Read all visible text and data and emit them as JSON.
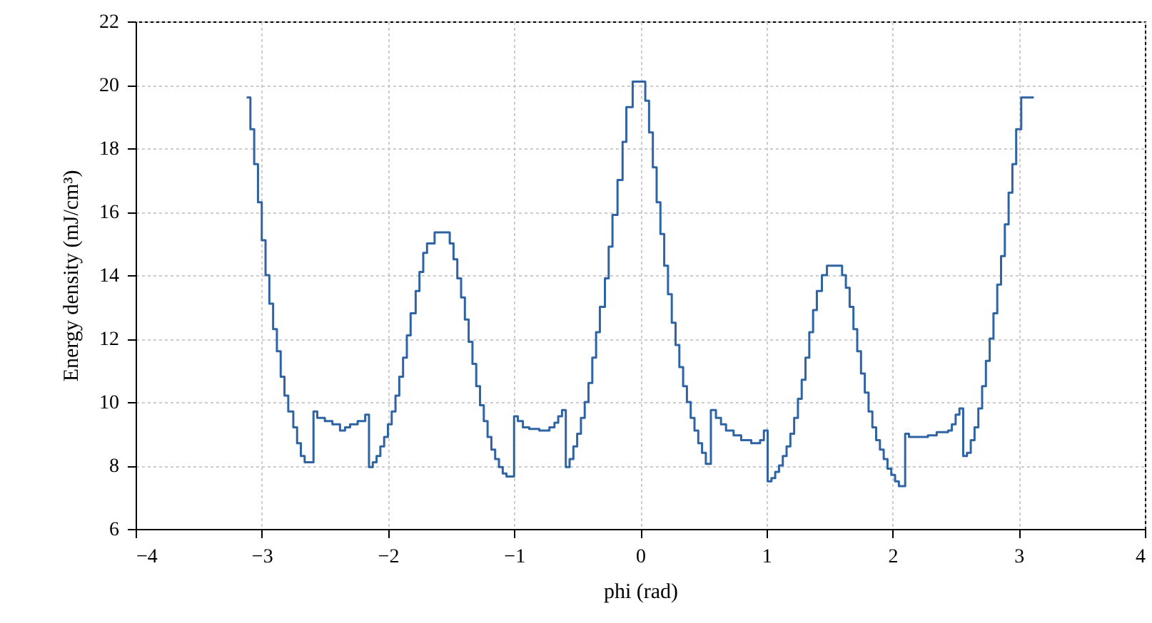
{
  "chart_data": {
    "type": "step",
    "xlabel": "phi (rad)",
    "ylabel": "Energy density (mJ/cm³)",
    "xlim": [
      -4,
      4
    ],
    "xticks": [
      -4,
      -3,
      -2,
      -1,
      0,
      1,
      2,
      3,
      4
    ],
    "ylim": [
      6,
      22
    ],
    "yticks": [
      6,
      8,
      10,
      12,
      14,
      16,
      18,
      20,
      22
    ],
    "grid": true,
    "line_style": "solid",
    "marker": "none",
    "series": [
      {
        "color": "#2e64a4",
        "x": [
          -3.12,
          -3.09,
          -3.06,
          -3.03,
          -3.0,
          -2.97,
          -2.94,
          -2.91,
          -2.88,
          -2.85,
          -2.82,
          -2.79,
          -2.75,
          -2.72,
          -2.69,
          -2.66,
          -2.59,
          -2.56,
          -2.5,
          -2.44,
          -2.38,
          -2.34,
          -2.3,
          -2.24,
          -2.18,
          -2.15,
          -2.12,
          -2.09,
          -2.06,
          -2.03,
          -2.0,
          -1.97,
          -1.94,
          -1.91,
          -1.88,
          -1.85,
          -1.82,
          -1.78,
          -1.75,
          -1.72,
          -1.69,
          -1.63,
          -1.51,
          -1.48,
          -1.45,
          -1.42,
          -1.39,
          -1.36,
          -1.33,
          -1.3,
          -1.27,
          -1.24,
          -1.21,
          -1.18,
          -1.15,
          -1.12,
          -1.09,
          -1.06,
          -1.0,
          -0.97,
          -0.93,
          -0.88,
          -0.8,
          -0.72,
          -0.68,
          -0.65,
          -0.62,
          -0.59,
          -0.56,
          -0.53,
          -0.5,
          -0.47,
          -0.44,
          -0.41,
          -0.38,
          -0.35,
          -0.32,
          -0.28,
          -0.25,
          -0.22,
          -0.18,
          -0.14,
          -0.11,
          -0.06,
          0.04,
          0.07,
          0.1,
          0.13,
          0.16,
          0.19,
          0.22,
          0.25,
          0.28,
          0.31,
          0.34,
          0.37,
          0.4,
          0.43,
          0.46,
          0.49,
          0.52,
          0.56,
          0.6,
          0.64,
          0.68,
          0.74,
          0.8,
          0.88,
          0.95,
          0.98,
          1.01,
          1.04,
          1.07,
          1.1,
          1.13,
          1.16,
          1.19,
          1.22,
          1.25,
          1.28,
          1.31,
          1.34,
          1.37,
          1.4,
          1.44,
          1.48,
          1.6,
          1.63,
          1.66,
          1.69,
          1.72,
          1.75,
          1.78,
          1.81,
          1.84,
          1.87,
          1.9,
          1.93,
          1.96,
          1.99,
          2.02,
          2.05,
          2.1,
          2.13,
          2.28,
          2.35,
          2.44,
          2.47,
          2.5,
          2.53,
          2.56,
          2.59,
          2.62,
          2.65,
          2.68,
          2.71,
          2.74,
          2.77,
          2.8,
          2.83,
          2.86,
          2.89,
          2.92,
          2.95,
          2.98,
          3.02,
          3.09,
          3.12
        ],
        "values": [
          19.6,
          18.6,
          17.5,
          16.3,
          15.1,
          14.0,
          13.1,
          12.3,
          11.6,
          10.8,
          10.2,
          9.7,
          9.2,
          8.7,
          8.3,
          8.1,
          9.7,
          9.5,
          9.4,
          9.3,
          9.1,
          9.2,
          9.3,
          9.4,
          9.6,
          7.95,
          8.1,
          8.3,
          8.6,
          8.9,
          9.3,
          9.7,
          10.2,
          10.8,
          11.4,
          12.1,
          12.8,
          13.5,
          14.1,
          14.7,
          15.0,
          15.35,
          15.0,
          14.5,
          13.9,
          13.3,
          12.6,
          11.9,
          11.2,
          10.5,
          9.9,
          9.4,
          8.9,
          8.5,
          8.2,
          7.95,
          7.75,
          7.65,
          9.55,
          9.4,
          9.2,
          9.15,
          9.1,
          9.2,
          9.35,
          9.55,
          9.75,
          7.95,
          8.2,
          8.6,
          9.0,
          9.5,
          10.0,
          10.6,
          11.4,
          12.2,
          13.0,
          13.9,
          14.9,
          15.9,
          17.0,
          18.2,
          19.3,
          20.1,
          19.5,
          18.5,
          17.4,
          16.3,
          15.3,
          14.3,
          13.4,
          12.5,
          11.8,
          11.1,
          10.5,
          10.0,
          9.5,
          9.1,
          8.7,
          8.4,
          8.05,
          9.75,
          9.5,
          9.3,
          9.1,
          8.95,
          8.8,
          8.7,
          8.8,
          9.1,
          7.5,
          7.6,
          7.8,
          8.0,
          8.3,
          8.6,
          9.0,
          9.5,
          10.1,
          10.7,
          11.4,
          12.2,
          12.9,
          13.5,
          14.0,
          14.3,
          14.0,
          13.6,
          13.0,
          12.3,
          11.6,
          10.9,
          10.3,
          9.7,
          9.2,
          8.8,
          8.5,
          8.2,
          7.9,
          7.7,
          7.5,
          7.35,
          9.0,
          8.9,
          8.95,
          9.05,
          9.1,
          9.3,
          9.6,
          9.8,
          8.3,
          8.4,
          8.8,
          9.2,
          9.8,
          10.5,
          11.3,
          12.0,
          12.8,
          13.7,
          14.6,
          15.6,
          16.6,
          17.5,
          18.6,
          19.6,
          19.6,
          19.6
        ]
      }
    ]
  }
}
